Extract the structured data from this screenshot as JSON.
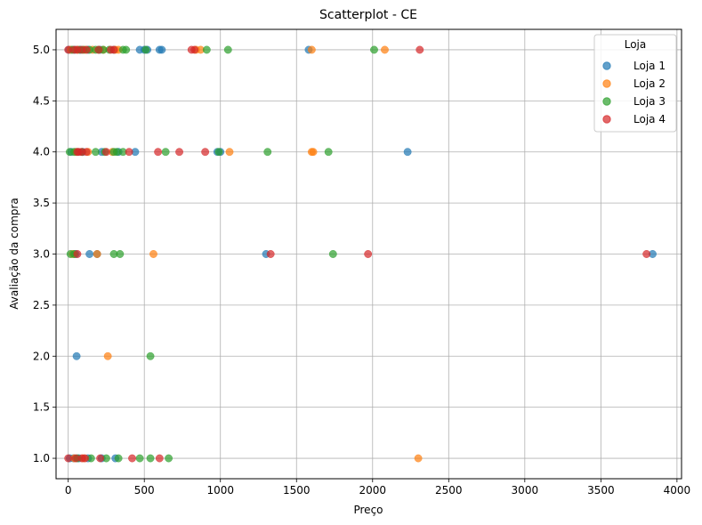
{
  "colors": {
    "series": [
      "#1f77b4",
      "#ff7f0e",
      "#2ca02c",
      "#d62728"
    ],
    "grid": "#b0b0b0",
    "axis": "#000000"
  },
  "chart_data": {
    "type": "scatter",
    "title": "Scatterplot - CE",
    "xlabel": "Preço",
    "ylabel": "Avaliação da compra",
    "xlim": [
      -80,
      4030
    ],
    "ylim": [
      0.8,
      5.2
    ],
    "xticks": [
      0,
      500,
      1000,
      1500,
      2000,
      2500,
      3000,
      3500,
      4000
    ],
    "yticks": [
      1.0,
      1.5,
      2.0,
      2.5,
      3.0,
      3.5,
      4.0,
      4.5,
      5.0
    ],
    "grid": true,
    "legend": {
      "title": "Loja",
      "position": "top-right"
    },
    "series": [
      {
        "name": "Loja 1",
        "points": [
          [
            5,
            5
          ],
          [
            20,
            5
          ],
          [
            45,
            5
          ],
          [
            80,
            5
          ],
          [
            130,
            5
          ],
          [
            210,
            5
          ],
          [
            300,
            5
          ],
          [
            470,
            5
          ],
          [
            500,
            5
          ],
          [
            520,
            5
          ],
          [
            600,
            5
          ],
          [
            615,
            5
          ],
          [
            1580,
            5
          ],
          [
            20,
            4
          ],
          [
            60,
            4
          ],
          [
            95,
            4
          ],
          [
            220,
            4
          ],
          [
            330,
            4
          ],
          [
            440,
            4
          ],
          [
            980,
            4
          ],
          [
            1000,
            4
          ],
          [
            2230,
            4
          ],
          [
            50,
            3
          ],
          [
            140,
            3
          ],
          [
            190,
            3
          ],
          [
            1300,
            3
          ],
          [
            3840,
            3
          ],
          [
            55,
            2
          ],
          [
            10,
            1
          ],
          [
            35,
            1
          ],
          [
            70,
            1
          ],
          [
            130,
            1
          ],
          [
            220,
            1
          ],
          [
            310,
            1
          ]
        ]
      },
      {
        "name": "Loja 2",
        "points": [
          [
            15,
            5
          ],
          [
            60,
            5
          ],
          [
            110,
            5
          ],
          [
            160,
            5
          ],
          [
            230,
            5
          ],
          [
            310,
            5
          ],
          [
            330,
            5
          ],
          [
            840,
            5
          ],
          [
            870,
            5
          ],
          [
            1600,
            5
          ],
          [
            2080,
            5
          ],
          [
            50,
            4
          ],
          [
            130,
            4
          ],
          [
            290,
            4
          ],
          [
            1060,
            4
          ],
          [
            1600,
            4
          ],
          [
            1610,
            4
          ],
          [
            30,
            3
          ],
          [
            190,
            3
          ],
          [
            560,
            3
          ],
          [
            260,
            2
          ],
          [
            40,
            1
          ],
          [
            100,
            1
          ],
          [
            2300,
            1
          ]
        ]
      },
      {
        "name": "Loja 3",
        "points": [
          [
            30,
            5
          ],
          [
            75,
            5
          ],
          [
            100,
            5
          ],
          [
            140,
            5
          ],
          [
            180,
            5
          ],
          [
            200,
            5
          ],
          [
            230,
            5
          ],
          [
            270,
            5
          ],
          [
            360,
            5
          ],
          [
            380,
            5
          ],
          [
            510,
            5
          ],
          [
            910,
            5
          ],
          [
            1050,
            5
          ],
          [
            2010,
            5
          ],
          [
            10,
            4
          ],
          [
            40,
            4
          ],
          [
            90,
            4
          ],
          [
            180,
            4
          ],
          [
            240,
            4
          ],
          [
            300,
            4
          ],
          [
            320,
            4
          ],
          [
            360,
            4
          ],
          [
            640,
            4
          ],
          [
            990,
            4
          ],
          [
            1310,
            4
          ],
          [
            1710,
            4
          ],
          [
            15,
            3
          ],
          [
            40,
            3
          ],
          [
            300,
            3
          ],
          [
            340,
            3
          ],
          [
            1740,
            3
          ],
          [
            540,
            2
          ],
          [
            60,
            1
          ],
          [
            150,
            1
          ],
          [
            250,
            1
          ],
          [
            330,
            1
          ],
          [
            470,
            1
          ],
          [
            540,
            1
          ],
          [
            660,
            1
          ]
        ]
      },
      {
        "name": "Loja 4",
        "points": [
          [
            0,
            5
          ],
          [
            40,
            5
          ],
          [
            60,
            5
          ],
          [
            90,
            5
          ],
          [
            120,
            5
          ],
          [
            200,
            5
          ],
          [
            280,
            5
          ],
          [
            300,
            5
          ],
          [
            810,
            5
          ],
          [
            830,
            5
          ],
          [
            2310,
            5
          ],
          [
            60,
            4
          ],
          [
            70,
            4
          ],
          [
            90,
            4
          ],
          [
            120,
            4
          ],
          [
            250,
            4
          ],
          [
            400,
            4
          ],
          [
            590,
            4
          ],
          [
            730,
            4
          ],
          [
            900,
            4
          ],
          [
            60,
            3
          ],
          [
            1330,
            3
          ],
          [
            1970,
            3
          ],
          [
            3800,
            3
          ],
          [
            0,
            1
          ],
          [
            50,
            1
          ],
          [
            90,
            1
          ],
          [
            110,
            1
          ],
          [
            210,
            1
          ],
          [
            420,
            1
          ],
          [
            600,
            1
          ]
        ]
      }
    ]
  }
}
